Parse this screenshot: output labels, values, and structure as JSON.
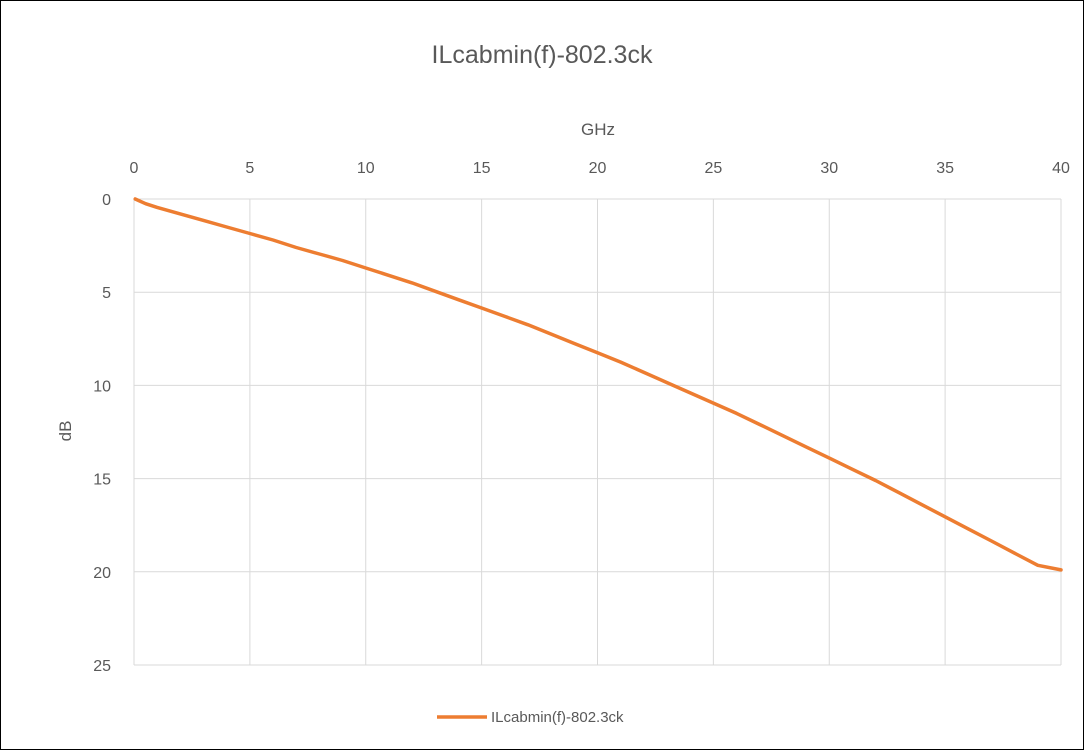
{
  "chart_data": {
    "type": "line",
    "title": "ILcabmin(f)-802.3ck",
    "xlabel": "GHz",
    "ylabel": "dB",
    "xlim": [
      0,
      40
    ],
    "ylim": [
      0,
      25
    ],
    "x_axis_position": "top",
    "y_axis_reversed": true,
    "grid": true,
    "legend": "bottom",
    "x_ticks": [
      "0",
      "5",
      "10",
      "15",
      "20",
      "25",
      "30",
      "35",
      "40"
    ],
    "y_ticks": [
      "0",
      "5",
      "10",
      "15",
      "20",
      "25"
    ],
    "series": [
      {
        "name": "ILcabmin(f)-802.3ck",
        "color": "#ed7d31",
        "x": [
          0.05,
          0.5,
          1,
          2,
          3,
          4,
          5,
          6,
          7,
          8,
          9,
          10,
          11,
          12,
          13,
          14,
          15,
          16,
          17,
          18,
          19,
          20,
          21,
          22,
          23,
          24,
          25,
          26,
          27,
          28,
          29,
          30,
          31,
          32,
          33,
          34,
          35,
          36,
          37,
          38,
          39,
          40
        ],
        "y": [
          0.0,
          0.25,
          0.45,
          0.8,
          1.15,
          1.5,
          1.85,
          2.2,
          2.6,
          2.95,
          3.3,
          3.7,
          4.1,
          4.5,
          4.95,
          5.4,
          5.85,
          6.3,
          6.75,
          7.25,
          7.75,
          8.25,
          8.75,
          9.3,
          9.85,
          10.4,
          10.95,
          11.5,
          12.1,
          12.7,
          13.3,
          13.9,
          14.5,
          15.1,
          15.75,
          16.4,
          17.05,
          17.7,
          18.35,
          19.0,
          19.65,
          19.9
        ]
      }
    ]
  }
}
